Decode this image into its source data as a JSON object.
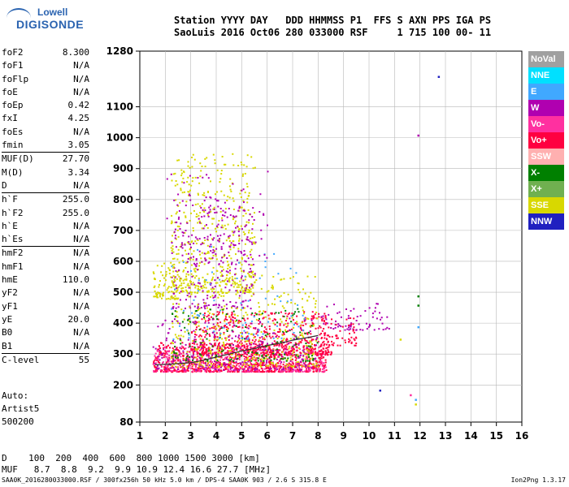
{
  "header": {
    "line1": "Station YYYY DAY   DDD HHMMSS P1  FFS S AXN PPS IGA PS",
    "line2": "SaoLuis 2016 Oct06 280 033000 RSF     1 715 100 00- 11"
  },
  "logo": {
    "top": "Lowell",
    "bottom": "DIGISONDE"
  },
  "params": [
    {
      "name": "foF2",
      "value": "8.300"
    },
    {
      "name": "foF1",
      "value": "N/A"
    },
    {
      "name": "foFlp",
      "value": "N/A"
    },
    {
      "name": "foE",
      "value": "N/A"
    },
    {
      "name": "foEp",
      "value": "0.42"
    },
    {
      "name": "fxI",
      "value": "4.25"
    },
    {
      "name": "foEs",
      "value": "N/A"
    },
    {
      "name": "fmin",
      "value": "3.05"
    },
    {
      "name": "sep"
    },
    {
      "name": "MUF(D)",
      "value": "27.70"
    },
    {
      "name": "M(D)",
      "value": "3.34"
    },
    {
      "name": "D",
      "value": "N/A"
    },
    {
      "name": "sep"
    },
    {
      "name": "h`F",
      "value": "255.0"
    },
    {
      "name": "h`F2",
      "value": "255.0"
    },
    {
      "name": "h`E",
      "value": "N/A"
    },
    {
      "name": "h`Es",
      "value": "N/A"
    },
    {
      "name": "sep"
    },
    {
      "name": "hmF2",
      "value": "N/A"
    },
    {
      "name": "hmF1",
      "value": "N/A"
    },
    {
      "name": "hmE",
      "value": "110.0"
    },
    {
      "name": "yF2",
      "value": "N/A"
    },
    {
      "name": "yF1",
      "value": "N/A"
    },
    {
      "name": "yE",
      "value": "20.0"
    },
    {
      "name": "B0",
      "value": "N/A"
    },
    {
      "name": "B1",
      "value": "N/A"
    },
    {
      "name": "sep"
    },
    {
      "name": "C-level",
      "value": "55"
    }
  ],
  "auto": [
    "Auto:",
    "Artist5",
    "500200"
  ],
  "footer": {
    "d_line": "D    100  200  400  600  800 1000 1500 3000 [km]",
    "muf_line": "MUF   8.7  8.8  9.2  9.9 10.9 12.4 16.6 27.7 [MHz]",
    "info": "SAA0K_2016280033000.RSF / 300fx256h 50 kHz 5.0 km / DPS-4 SAA0K 903 / 2.6 S 315.8 E",
    "version": "Ion2Png 1.3.17"
  },
  "legend": [
    {
      "label": "NoVal",
      "color": "#a0a0a0"
    },
    {
      "label": "NNE",
      "color": "#00e0ff"
    },
    {
      "label": "E",
      "color": "#40a8ff"
    },
    {
      "label": "W",
      "color": "#b000b0"
    },
    {
      "label": "Vo-",
      "color": "#ff30a0"
    },
    {
      "label": "Vo+",
      "color": "#ff0040"
    },
    {
      "label": "SSW",
      "color": "#ffb0b0"
    },
    {
      "label": "X-",
      "color": "#008000"
    },
    {
      "label": "X+",
      "color": "#70b050"
    },
    {
      "label": "SSE",
      "color": "#d8d800"
    },
    {
      "label": "NNW",
      "color": "#2020c0"
    }
  ],
  "chart_data": {
    "type": "scatter",
    "xlabel": "",
    "ylabel": "",
    "xlim": [
      1,
      16
    ],
    "ylim": [
      80,
      1280
    ],
    "x_ticks": [
      1,
      2,
      3,
      4,
      5,
      6,
      7,
      8,
      9,
      10,
      11,
      12,
      13,
      14,
      15,
      16
    ],
    "y_ticks": [
      80,
      200,
      300,
      400,
      500,
      600,
      700,
      800,
      900,
      1000,
      1100,
      1280
    ],
    "grid": true,
    "echo_clusters": [
      {
        "xmin": 1.5,
        "xmax": 8.3,
        "ymin": 245,
        "ymax": 340,
        "color": "#ff0040",
        "n": 900
      },
      {
        "xmin": 1.5,
        "xmax": 8.3,
        "ymin": 245,
        "ymax": 330,
        "color": "#ff30a0",
        "n": 350
      },
      {
        "xmin": 3.0,
        "xmax": 8.5,
        "ymin": 300,
        "ymax": 440,
        "color": "#ff0040",
        "n": 500
      },
      {
        "xmin": 2.2,
        "xmax": 5.5,
        "ymin": 500,
        "ymax": 950,
        "color": "#d8d800",
        "n": 500
      },
      {
        "xmin": 2.2,
        "xmax": 5.5,
        "ymin": 450,
        "ymax": 800,
        "color": "#b000b0",
        "n": 250
      },
      {
        "xmin": 2.2,
        "xmax": 8.0,
        "ymin": 260,
        "ymax": 560,
        "color": "#d8d800",
        "n": 450
      },
      {
        "xmin": 2.2,
        "xmax": 8.0,
        "ymin": 280,
        "ymax": 450,
        "color": "#008000",
        "n": 150
      },
      {
        "xmin": 1.5,
        "xmax": 8.0,
        "ymin": 250,
        "ymax": 420,
        "color": "#b000b0",
        "n": 250
      },
      {
        "xmin": 1.5,
        "xmax": 2.5,
        "ymin": 480,
        "ymax": 600,
        "color": "#d8d800",
        "n": 80
      },
      {
        "xmin": 8.0,
        "xmax": 10.8,
        "ymin": 380,
        "ymax": 470,
        "color": "#b000b0",
        "n": 70
      },
      {
        "xmin": 8.0,
        "xmax": 9.5,
        "ymin": 330,
        "ymax": 420,
        "color": "#ff0040",
        "n": 60
      },
      {
        "xmin": 2.2,
        "xmax": 7.5,
        "ymin": 350,
        "ymax": 650,
        "color": "#40a8ff",
        "n": 80
      },
      {
        "xmin": 2.0,
        "xmax": 6.0,
        "ymin": 600,
        "ymax": 900,
        "color": "#b000b0",
        "n": 100
      }
    ],
    "trace": {
      "x": [
        1.6,
        2.3,
        3.0,
        3.5,
        4.0,
        4.5,
        5.0,
        5.5,
        6.0,
        6.5,
        7.0,
        7.5,
        8.0
      ],
      "y": [
        265,
        268,
        272,
        280,
        290,
        300,
        310,
        318,
        328,
        335,
        345,
        352,
        360
      ]
    },
    "isolated_points": [
      {
        "x": 12.7,
        "y": 1200,
        "color": "#2020c0"
      },
      {
        "x": 11.9,
        "y": 1010,
        "color": "#b000b0"
      },
      {
        "x": 10.4,
        "y": 185,
        "color": "#2020c0"
      },
      {
        "x": 11.6,
        "y": 170,
        "color": "#ff30a0"
      },
      {
        "x": 11.8,
        "y": 155,
        "color": "#40a8ff"
      },
      {
        "x": 11.8,
        "y": 140,
        "color": "#d8d800"
      },
      {
        "x": 11.9,
        "y": 490,
        "color": "#008000"
      },
      {
        "x": 11.9,
        "y": 390,
        "color": "#40a8ff"
      },
      {
        "x": 11.2,
        "y": 350,
        "color": "#d8d800"
      },
      {
        "x": 11.9,
        "y": 460,
        "color": "#008000"
      }
    ]
  }
}
